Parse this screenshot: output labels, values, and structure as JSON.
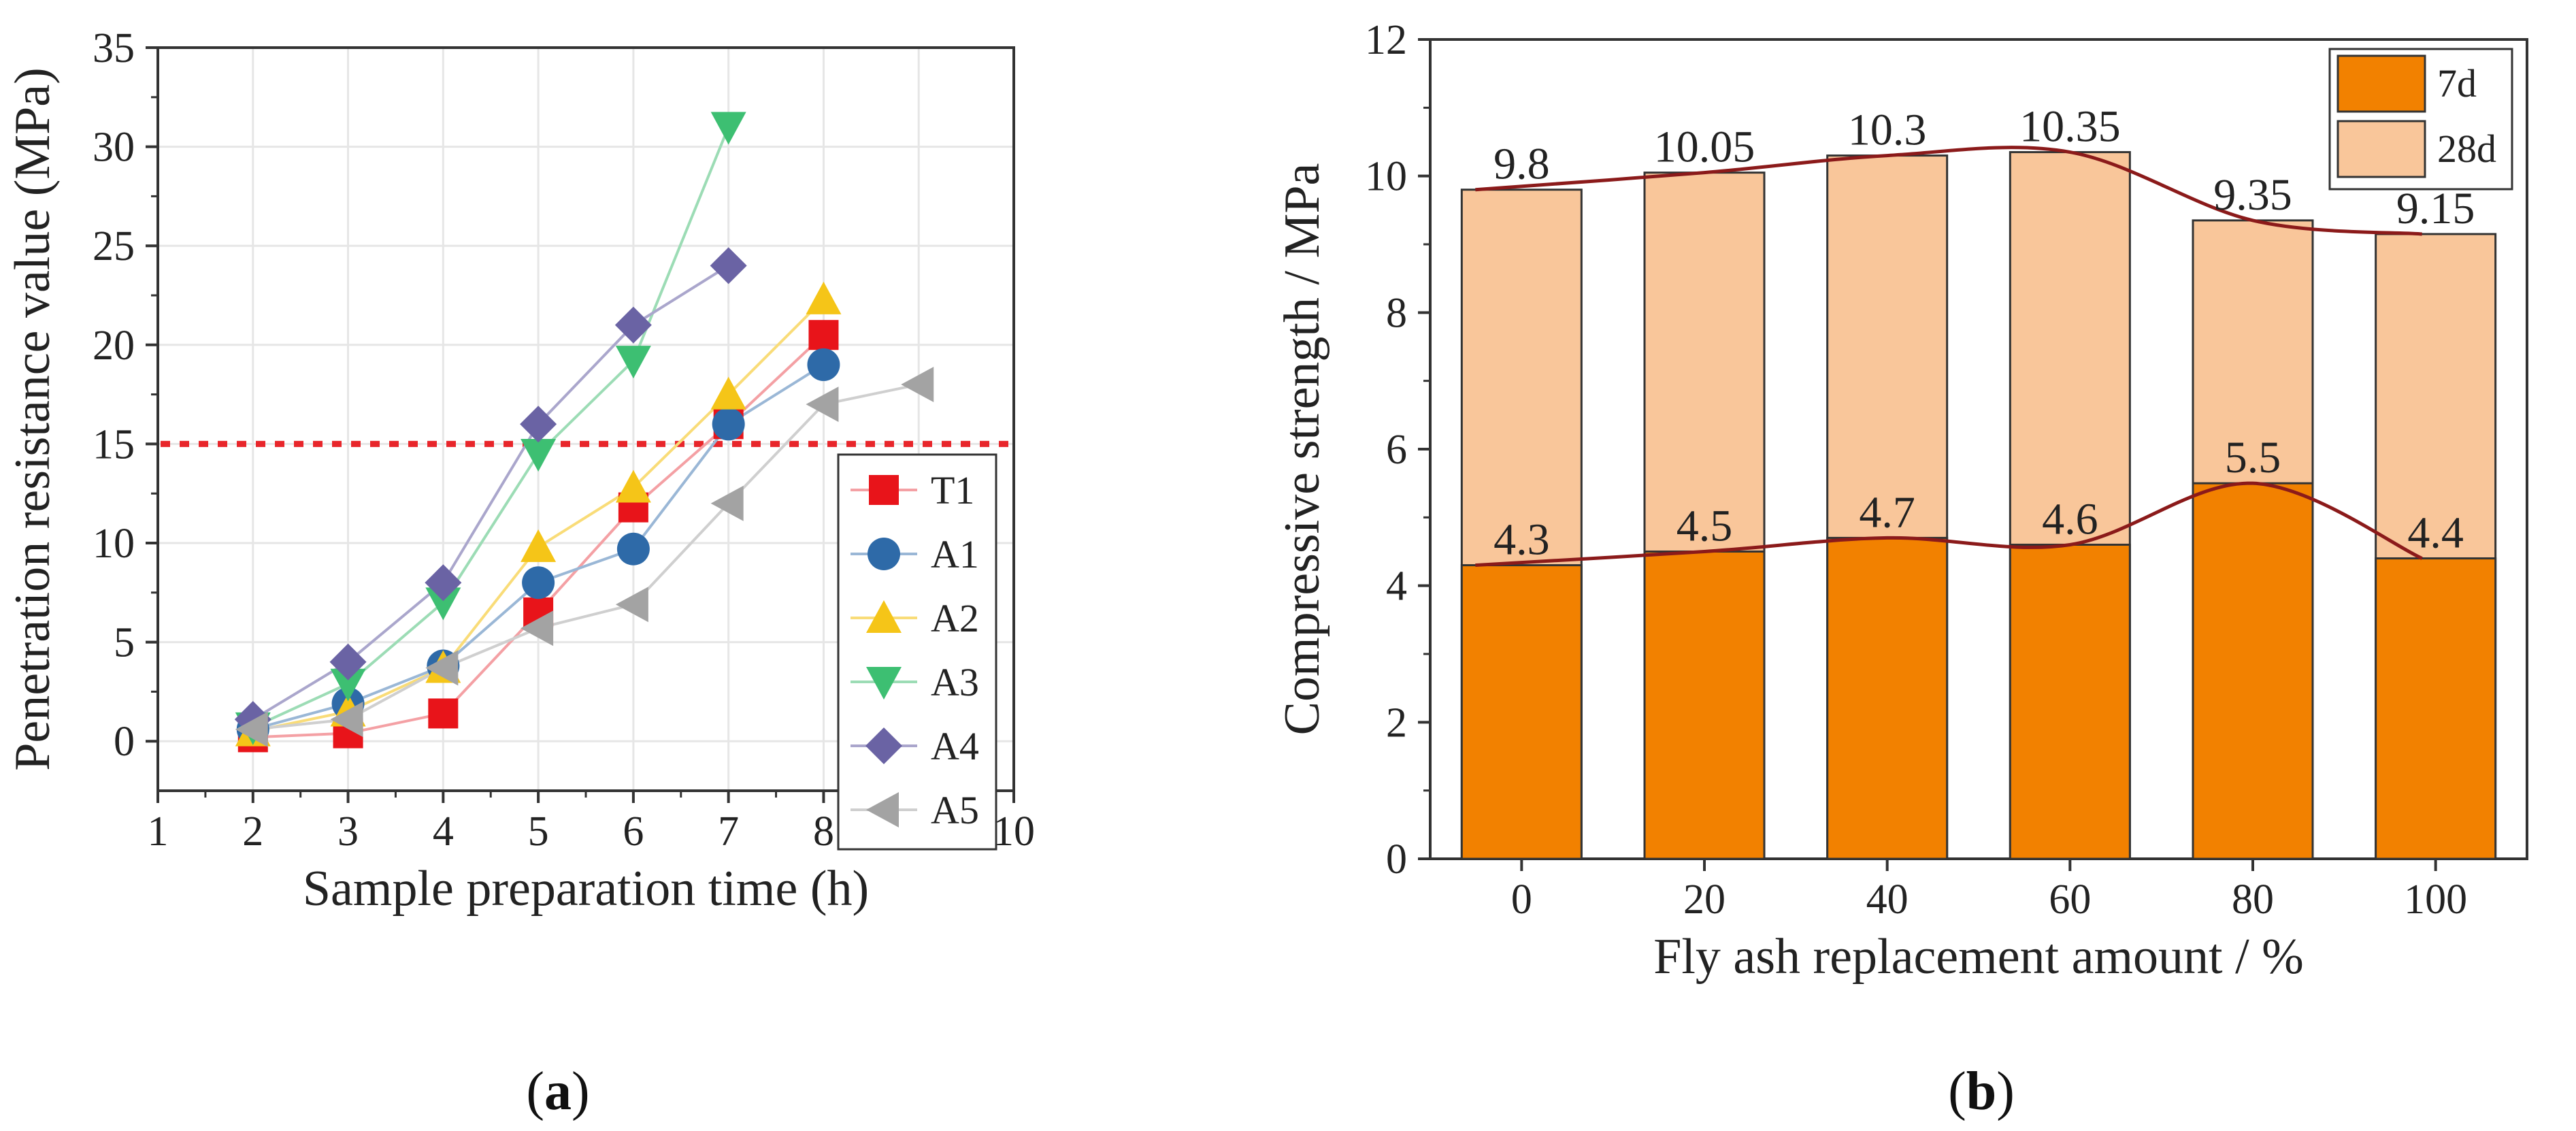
{
  "chart_data": [
    {
      "panel": "(a)",
      "panel_open": "(",
      "panel_letter": "a",
      "panel_close": ")",
      "type": "line",
      "xlabel": "Sample preparation time (h)",
      "ylabel": "Penetration resistance value (MPa)",
      "xlim": [
        1,
        10
      ],
      "ylim": [
        -2.5,
        35
      ],
      "xticks": [
        1,
        2,
        3,
        4,
        5,
        6,
        7,
        8,
        9,
        10
      ],
      "yticks": [
        0,
        5,
        10,
        15,
        20,
        25,
        30,
        35
      ],
      "grid": true,
      "legend_position": "bottom-right",
      "reference_line": {
        "y": 15,
        "style": "dotted",
        "color": "#e8262b"
      },
      "series": [
        {
          "name": "T1",
          "color": "#e8141a",
          "line_color": "#f4a0a4",
          "marker": "square",
          "x": [
            2,
            3,
            4,
            5,
            6,
            7,
            8
          ],
          "y": [
            0.2,
            0.4,
            1.4,
            6.5,
            11.8,
            16.0,
            20.5
          ]
        },
        {
          "name": "A1",
          "color": "#2e6aa8",
          "line_color": "#9ab7d6",
          "marker": "circle",
          "x": [
            2,
            3,
            4,
            5,
            6,
            7,
            8
          ],
          "y": [
            0.6,
            1.9,
            3.8,
            8.0,
            9.7,
            16.0,
            19.0
          ]
        },
        {
          "name": "A2",
          "color": "#f5c518",
          "line_color": "#f9dc78",
          "marker": "triangle-up",
          "x": [
            2,
            3,
            4,
            5,
            6,
            7,
            8
          ],
          "y": [
            0.5,
            1.5,
            3.7,
            9.8,
            12.8,
            17.5,
            22.3
          ]
        },
        {
          "name": "A3",
          "color": "#3dbf72",
          "line_color": "#9cdcb5",
          "marker": "triangle-down",
          "x": [
            2,
            3,
            4,
            5,
            6,
            7
          ],
          "y": [
            0.7,
            2.9,
            7.0,
            14.5,
            19.2,
            31.0
          ]
        },
        {
          "name": "A4",
          "color": "#6a63a4",
          "line_color": "#aaa6cc",
          "marker": "diamond",
          "x": [
            2,
            3,
            4,
            5,
            6,
            7
          ],
          "y": [
            1.1,
            4.0,
            8.0,
            16.0,
            21.0,
            24.0
          ]
        },
        {
          "name": "A5",
          "color": "#a3a3a3",
          "line_color": "#cfcfcf",
          "marker": "triangle-left",
          "x": [
            2,
            3,
            4,
            5,
            6,
            7,
            8,
            9
          ],
          "y": [
            0.6,
            1.1,
            3.7,
            5.7,
            6.9,
            12.0,
            17.0,
            18.0
          ]
        }
      ]
    },
    {
      "panel": "(b)",
      "panel_open": "(",
      "panel_letter": "b",
      "panel_close": ")",
      "type": "bar",
      "xlabel": "Fly ash replacement amount / %",
      "ylabel": "Compressive strength / MPa",
      "ylim": [
        0,
        12
      ],
      "yticks": [
        0,
        2,
        4,
        6,
        8,
        10,
        12
      ],
      "categories": [
        "0",
        "20",
        "40",
        "60",
        "80",
        "100"
      ],
      "legend_position": "top-right",
      "series": [
        {
          "name": "7d",
          "color": "#f28100",
          "values": [
            4.3,
            4.5,
            4.7,
            4.6,
            5.5,
            4.4
          ],
          "labels": [
            "4.3",
            "4.5",
            "4.7",
            "4.6",
            "5.5",
            "4.4"
          ]
        },
        {
          "name": "28d",
          "color": "#f9c69a",
          "values": [
            9.8,
            10.05,
            10.3,
            10.35,
            9.35,
            9.15
          ],
          "labels": [
            "9.8",
            "10.05",
            "10.3",
            "10.35",
            "9.35",
            "9.15"
          ]
        }
      ],
      "trend_line_color": "#8b1a1a"
    }
  ]
}
